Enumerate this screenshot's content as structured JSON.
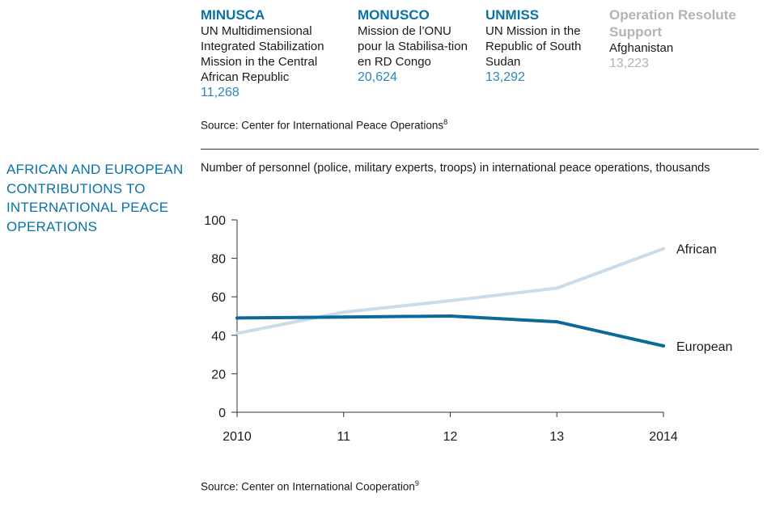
{
  "missions": [
    {
      "name": "MINUSCA",
      "desc": "UN Multidimensional Integrated Stabilization Mission in the Central African Republic",
      "count": "11,268",
      "muted": false
    },
    {
      "name": "MONUSCO",
      "desc": "Mission de l’ONU pour la Stabilisa-tion en RD Congo",
      "count": "20,624",
      "muted": false
    },
    {
      "name": "UNMISS",
      "desc": "UN Mission in the Republic of South Sudan",
      "count": "13,292",
      "muted": false
    },
    {
      "name": "Operation Resolute Support",
      "desc": "Afghanistan",
      "count": "13,223",
      "muted": true
    }
  ],
  "source_top": {
    "text": "Source: Center for International Peace Operations",
    "ref": "8"
  },
  "section_title": "AFRICAN AND EUROPEAN CONTRIBUTIONS TO INTERNATIONAL PEACE OPERATIONS",
  "chart_data": {
    "type": "line",
    "title": "",
    "subtitle": "Number of personnel (police, military experts, troops) in international peace operations, thousands",
    "x": [
      2010,
      2011,
      2012,
      2013,
      2014
    ],
    "x_tick_labels": [
      "2010",
      "11",
      "12",
      "13",
      "2014"
    ],
    "ylim": [
      0,
      100
    ],
    "y_ticks": [
      0,
      20,
      40,
      60,
      80,
      100
    ],
    "grid": false,
    "legend": "inline-right",
    "series": [
      {
        "name": "African",
        "values": [
          41,
          52,
          58,
          64.5,
          85
        ],
        "color": "#c8dcea"
      },
      {
        "name": "European",
        "values": [
          49,
          49.5,
          50,
          47,
          34.5
        ],
        "color": "#0b6a9a"
      }
    ]
  },
  "source_bottom": {
    "text": "Source: Center on International Cooperation",
    "ref": "9"
  }
}
